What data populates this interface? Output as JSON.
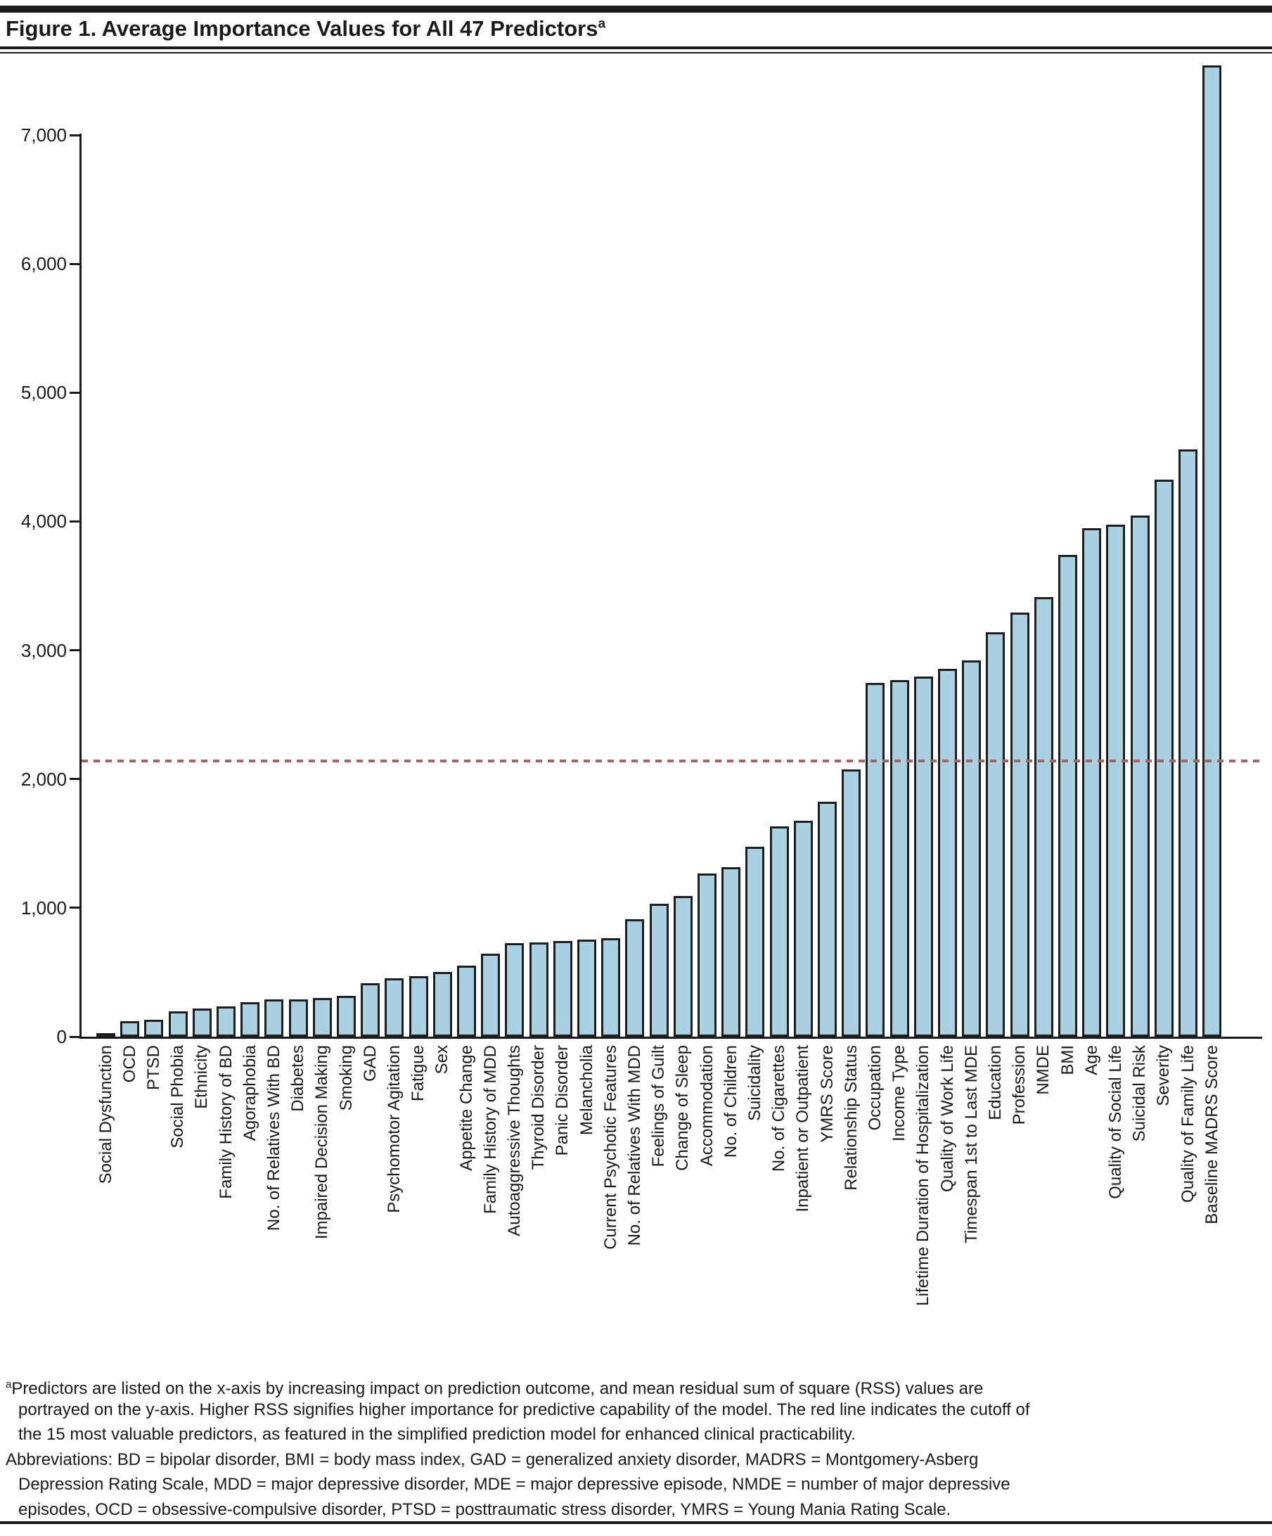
{
  "figure": {
    "title": "Figure 1. Average Importance Values for All 47 Predictors",
    "title_superscript": "a"
  },
  "chart_data": {
    "type": "bar",
    "title": "Average Importance Values for All 47 Predictors",
    "xlabel": "",
    "ylabel": "",
    "ylim": [
      0,
      7000
    ],
    "grid": false,
    "legend": "none",
    "bar_color": "#a9d1e1",
    "bar_border_color": "#1e1e1e",
    "yticks": [
      0,
      1000,
      2000,
      3000,
      4000,
      5000,
      6000,
      7000
    ],
    "ytick_labels": [
      "0",
      "1,000",
      "2,000",
      "3,000",
      "4,000",
      "5,000",
      "6,000",
      "7,000"
    ],
    "cutoff_line": {
      "value": 2140,
      "color": "#a06565",
      "style": "dashed",
      "meaning": "cutoff of the 15 most valuable predictors"
    },
    "categories": [
      "Social Dysfunction",
      "OCD",
      "PTSD",
      "Social Phobia",
      "Ethnicity",
      "Family History of BD",
      "Agoraphobia",
      "No. of Relatives With BD",
      "Diabetes",
      "Impaired Decision Making",
      "Smoking",
      "GAD",
      "Psychomotor Agitation",
      "Fatigue",
      "Sex",
      "Appetite Change",
      "Family History of MDD",
      "Autoaggressive Thoughts",
      "Thyroid Disorder",
      "Panic Disorder",
      "Melancholia",
      "Current Psychotic Features",
      "No. of Relatives With MDD",
      "Feelings of Guilt",
      "Change of Sleep",
      "Accommodation",
      "No. of Children",
      "Suicidality",
      "No. of Cigarettes",
      "Inpatient or Outpatient",
      "YMRS Score",
      "Relationship Status",
      "Occupation",
      "Income Type",
      "Lifetime Duration of Hospitalization",
      "Quality of Work Life",
      "Timespan 1st to Last MDE",
      "Education",
      "Profession",
      "NMDE",
      "BMI",
      "Age",
      "Quality of Social Life",
      "Suicidal Risk",
      "Severity",
      "Quality of Family Life",
      "Baseline MADRS Score"
    ],
    "values": [
      25,
      120,
      133,
      195,
      220,
      237,
      270,
      290,
      292,
      302,
      319,
      417,
      455,
      468,
      500,
      550,
      647,
      727,
      731,
      743,
      756,
      767,
      913,
      1030,
      1093,
      1268,
      1317,
      1475,
      1634,
      1678,
      1825,
      2075,
      2746,
      2767,
      2795,
      2855,
      2921,
      3139,
      3295,
      3413,
      3738,
      3948,
      3975,
      4044,
      4324,
      4558,
      7539
    ]
  },
  "footnote": {
    "lines": [
      {
        "sup": "a",
        "indent": false,
        "text": "Predictors are listed on the x-axis by increasing impact on prediction outcome, and mean residual sum of square (RSS) values are"
      },
      {
        "indent": true,
        "text": "portrayed on the y-axis. Higher RSS signifies higher importance for predictive capability of the model. The red line indicates the cutoff of"
      },
      {
        "indent": true,
        "text": "the 15 most valuable predictors, as featured in the simplified prediction model for enhanced clinical practicability."
      },
      {
        "indent": false,
        "text": "Abbreviations: BD = bipolar disorder, BMI = body mass index, GAD = generalized anxiety disorder, MADRS = Montgomery-Asberg"
      },
      {
        "indent": true,
        "text": "Depression Rating Scale, MDD = major depressive disorder, MDE = major depressive episode, NMDE = number of major depressive"
      },
      {
        "indent": true,
        "text": "episodes, OCD = obsessive-compulsive disorder, PTSD = posttraumatic stress disorder, YMRS = Young Mania Rating Scale."
      }
    ]
  }
}
